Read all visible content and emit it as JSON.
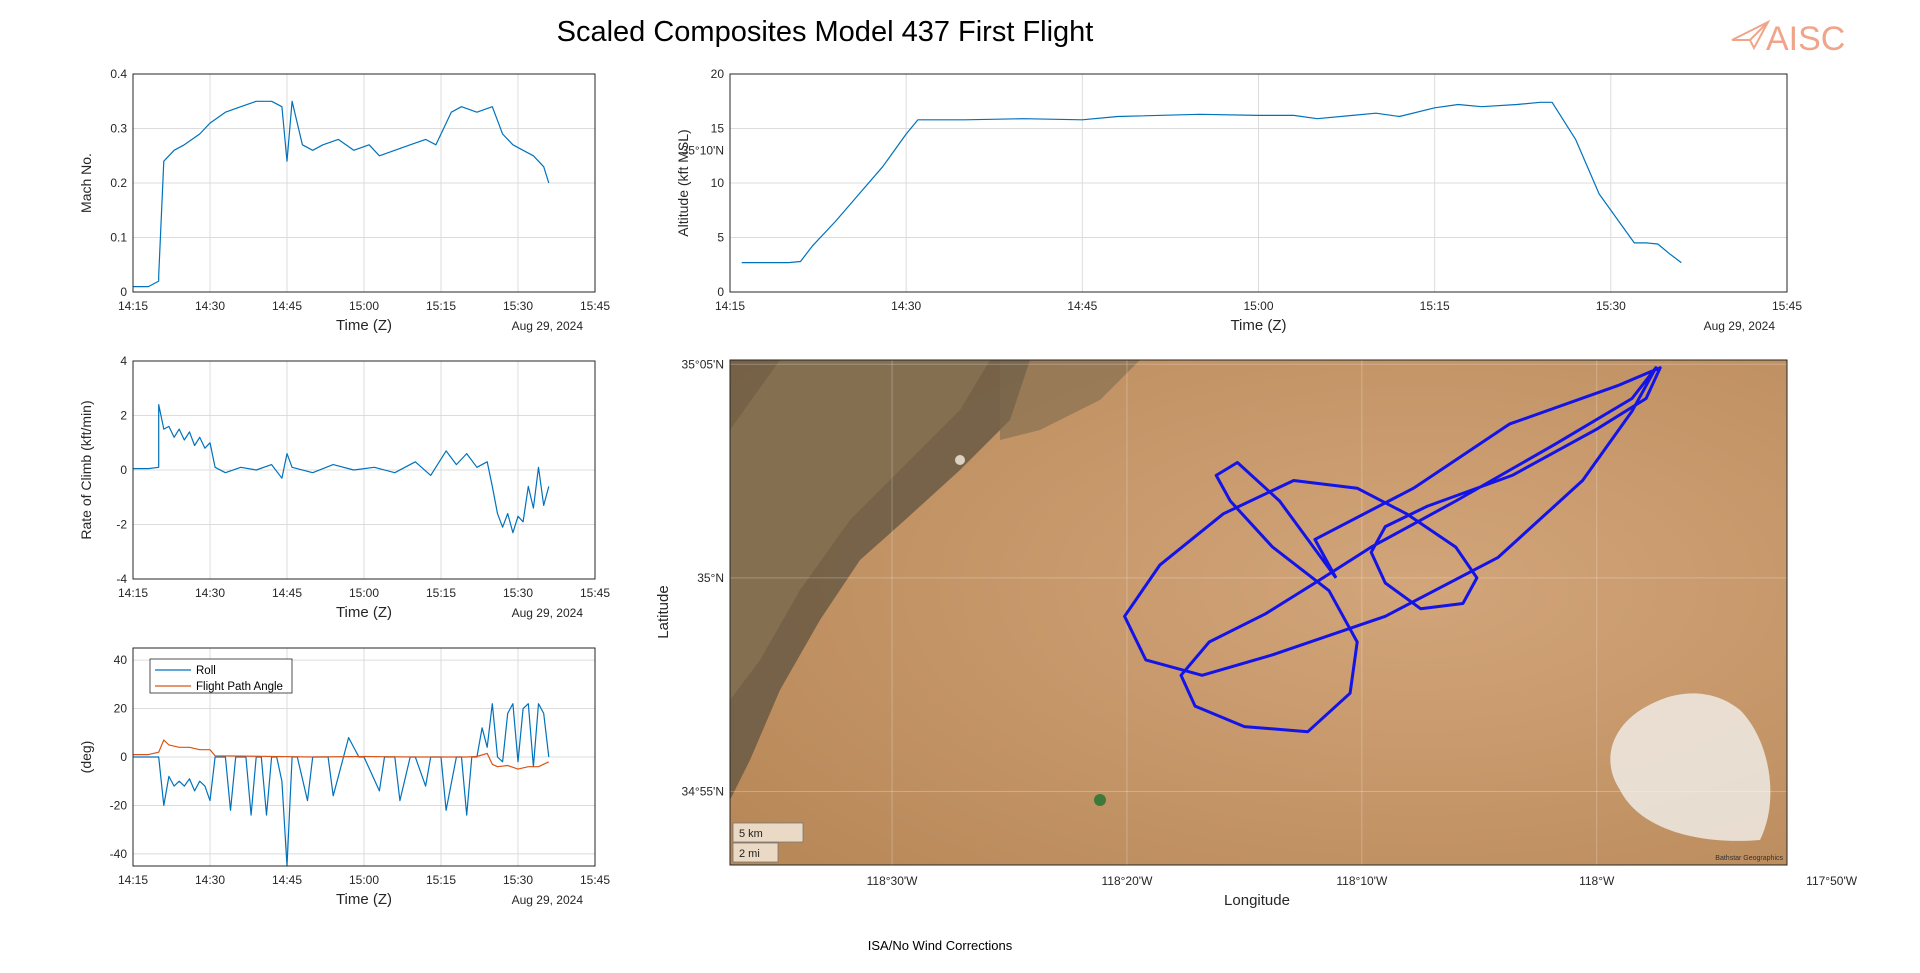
{
  "title": "Scaled Composites Model 437 First Flight",
  "logo_text": "AISC",
  "footer": "ISA/No Wind Corrections",
  "colors": {
    "series_blue": "#0072BD",
    "series_orange": "#D95319",
    "track_blue": "#1414e6",
    "logo": "#f0a58a",
    "grid": "#dcdcdc"
  },
  "chart_data": [
    {
      "id": "mach",
      "type": "line",
      "xlabel": "Time (Z)",
      "ylabel": "Mach No.",
      "date_label": "Aug 29, 2024",
      "x_ticks": [
        "14:15",
        "14:30",
        "14:45",
        "15:00",
        "15:15",
        "15:30",
        "15:45"
      ],
      "y_ticks": [
        "0",
        "0.1",
        "0.2",
        "0.3",
        "0.4"
      ],
      "xlim": [
        "14:15",
        "15:45"
      ],
      "ylim": [
        0,
        0.4
      ],
      "grid": true,
      "series": [
        {
          "color": "series_blue",
          "x": [
            "14:15",
            "14:18",
            "14:20",
            "14:20",
            "14:21",
            "14:23",
            "14:25",
            "14:28",
            "14:30",
            "14:33",
            "14:36",
            "14:39",
            "14:42",
            "14:44",
            "14:45",
            "14:46",
            "14:48",
            "14:50",
            "14:52",
            "14:55",
            "14:58",
            "15:01",
            "15:03",
            "15:06",
            "15:09",
            "15:12",
            "15:14",
            "15:17",
            "15:19",
            "15:22",
            "15:25",
            "15:27",
            "15:29",
            "15:31",
            "15:33",
            "15:35",
            "15:36"
          ],
          "y": [
            0.01,
            0.01,
            0.02,
            0.03,
            0.24,
            0.26,
            0.27,
            0.29,
            0.31,
            0.33,
            0.34,
            0.35,
            0.35,
            0.34,
            0.24,
            0.35,
            0.27,
            0.26,
            0.27,
            0.28,
            0.26,
            0.27,
            0.25,
            0.26,
            0.27,
            0.28,
            0.27,
            0.33,
            0.34,
            0.33,
            0.34,
            0.29,
            0.27,
            0.26,
            0.25,
            0.23,
            0.2
          ]
        }
      ]
    },
    {
      "id": "altitude",
      "type": "line",
      "xlabel": "Time (Z)",
      "ylabel": "Altitude (kft MSL)",
      "date_label": "Aug 29, 2024",
      "x_ticks": [
        "14:15",
        "14:30",
        "14:45",
        "15:00",
        "15:15",
        "15:30",
        "15:45"
      ],
      "y_ticks": [
        "0",
        "5",
        "10",
        "15",
        "20"
      ],
      "xlim": [
        "14:15",
        "15:45"
      ],
      "ylim": [
        0,
        20
      ],
      "grid": true,
      "series": [
        {
          "color": "series_blue",
          "x": [
            "14:16",
            "14:18",
            "14:20",
            "14:21",
            "14:22",
            "14:24",
            "14:26",
            "14:28",
            "14:30",
            "14:31",
            "14:35",
            "14:40",
            "14:45",
            "14:48",
            "14:55",
            "15:00",
            "15:03",
            "15:05",
            "15:08",
            "15:10",
            "15:12",
            "15:15",
            "15:17",
            "15:19",
            "15:22",
            "15:24",
            "15:25",
            "15:27",
            "15:29",
            "15:31",
            "15:32",
            "15:33",
            "15:34",
            "15:35",
            "15:36"
          ],
          "y": [
            2.7,
            2.7,
            2.7,
            2.8,
            4.2,
            6.5,
            9,
            11.5,
            14.5,
            15.8,
            15.8,
            15.9,
            15.8,
            16.1,
            16.3,
            16.2,
            16.2,
            15.9,
            16.2,
            16.4,
            16.1,
            16.9,
            17.2,
            17,
            17.2,
            17.4,
            17.4,
            14,
            9,
            6,
            4.5,
            4.5,
            4.4,
            3.5,
            2.7
          ]
        }
      ]
    },
    {
      "id": "climb",
      "type": "line",
      "xlabel": "Time (Z)",
      "ylabel": "Rate of Climb (kft/min)",
      "date_label": "Aug 29, 2024",
      "x_ticks": [
        "14:15",
        "14:30",
        "14:45",
        "15:00",
        "15:15",
        "15:30",
        "15:45"
      ],
      "y_ticks": [
        "-4",
        "-2",
        "0",
        "2",
        "4"
      ],
      "xlim": [
        "14:15",
        "15:45"
      ],
      "ylim": [
        -4,
        4
      ],
      "grid": true,
      "series": [
        {
          "color": "series_blue",
          "x": [
            "14:15",
            "14:18",
            "14:20",
            "14:20",
            "14:21",
            "14:22",
            "14:23",
            "14:24",
            "14:25",
            "14:26",
            "14:27",
            "14:28",
            "14:29",
            "14:30",
            "14:31",
            "14:33",
            "14:36",
            "14:39",
            "14:42",
            "14:44",
            "14:45",
            "14:46",
            "14:50",
            "14:54",
            "14:58",
            "15:02",
            "15:06",
            "15:10",
            "15:13",
            "15:16",
            "15:18",
            "15:20",
            "15:22",
            "15:24",
            "15:25",
            "15:26",
            "15:27",
            "15:28",
            "15:29",
            "15:30",
            "15:31",
            "15:32",
            "15:33",
            "15:34",
            "15:35",
            "15:36"
          ],
          "y": [
            0.05,
            0.05,
            0.1,
            2.4,
            1.5,
            1.6,
            1.2,
            1.5,
            1.1,
            1.4,
            0.9,
            1.2,
            0.8,
            1,
            0.1,
            -0.1,
            0.1,
            0,
            0.2,
            -0.3,
            0.6,
            0.1,
            -0.1,
            0.2,
            0,
            0.1,
            -0.1,
            0.3,
            -0.2,
            0.7,
            0.2,
            0.6,
            0.1,
            0.3,
            -0.6,
            -1.6,
            -2.1,
            -1.6,
            -2.3,
            -1.7,
            -1.9,
            -0.6,
            -1.4,
            0.1,
            -1.3,
            -0.6
          ]
        }
      ]
    },
    {
      "id": "attitude",
      "type": "line",
      "xlabel": "Time (Z)",
      "ylabel": "(deg)",
      "date_label": "Aug 29, 2024",
      "x_ticks": [
        "14:15",
        "14:30",
        "14:45",
        "15:00",
        "15:15",
        "15:30",
        "15:45"
      ],
      "y_ticks": [
        "-40",
        "-20",
        "0",
        "20",
        "40"
      ],
      "xlim": [
        "14:15",
        "15:45"
      ],
      "ylim": [
        -45,
        45
      ],
      "grid": true,
      "legend": "top-left",
      "series": [
        {
          "name": "Roll",
          "color": "series_blue",
          "x": [
            "14:15",
            "14:18",
            "14:20",
            "14:21",
            "14:22",
            "14:23",
            "14:24",
            "14:25",
            "14:26",
            "14:27",
            "14:28",
            "14:29",
            "14:30",
            "14:31",
            "14:33",
            "14:34",
            "14:35",
            "14:37",
            "14:38",
            "14:39",
            "14:40",
            "14:41",
            "14:42",
            "14:43",
            "14:44",
            "14:45",
            "14:46",
            "14:47",
            "14:49",
            "14:50",
            "14:53",
            "14:54",
            "14:56",
            "14:57",
            "14:59",
            "15:00",
            "15:03",
            "15:04",
            "15:06",
            "15:07",
            "15:09",
            "15:10",
            "15:12",
            "15:13",
            "15:15",
            "15:16",
            "15:18",
            "15:19",
            "15:20",
            "15:21",
            "15:22",
            "15:23",
            "15:24",
            "15:25",
            "15:26",
            "15:27",
            "15:28",
            "15:29",
            "15:30",
            "15:31",
            "15:32",
            "15:33",
            "15:34",
            "15:35",
            "15:36"
          ],
          "y": [
            0,
            0,
            0,
            -20,
            -8,
            -12,
            -10,
            -12,
            -9,
            -14,
            -10,
            -12,
            -18,
            0,
            0,
            -22,
            0,
            0,
            -24,
            0,
            0,
            -24,
            0,
            0,
            -10,
            -45,
            0,
            0,
            -18,
            0,
            0,
            -16,
            0,
            8,
            0,
            0,
            -14,
            0,
            0,
            -18,
            0,
            0,
            -12,
            0,
            0,
            -22,
            0,
            0,
            -24,
            0,
            0,
            12,
            4,
            22,
            0,
            -2,
            18,
            22,
            -2,
            20,
            22,
            -4,
            22,
            18,
            0
          ]
        },
        {
          "name": "Flight Path Angle",
          "color": "series_orange",
          "x": [
            "14:15",
            "14:18",
            "14:20",
            "14:21",
            "14:22",
            "14:24",
            "14:26",
            "14:28",
            "14:30",
            "14:31",
            "14:40",
            "14:50",
            "15:00",
            "15:10",
            "15:15",
            "15:20",
            "15:22",
            "15:24",
            "15:25",
            "15:26",
            "15:28",
            "15:30",
            "15:32",
            "15:34",
            "15:36"
          ],
          "y": [
            1,
            1,
            2,
            7,
            5,
            4,
            4,
            3,
            3,
            0.5,
            0.3,
            0,
            0.2,
            0,
            0,
            0,
            0.2,
            1.5,
            -3,
            -4,
            -3.5,
            -5,
            -4,
            -4,
            -2
          ]
        }
      ]
    },
    {
      "id": "track",
      "type": "map-track",
      "xlabel": "Longitude",
      "ylabel": "Latitude",
      "x_ticks": [
        "118°30'W",
        "118°20'W",
        "118°10'W",
        "118°W",
        "117°50'W"
      ],
      "y_ticks": [
        "34°55'N",
        "35°N",
        "35°05'N",
        "35°10'N"
      ],
      "xlim": [
        -118.615,
        -117.865
      ],
      "ylim": [
        34.888,
        35.085
      ],
      "scale_bar": [
        "5 km",
        "2 mi"
      ],
      "attribution": "Bathstar Geographics",
      "series": [
        {
          "color": "track_blue",
          "lon": [
            -118.185,
            -118.2,
            -118.13,
            -118.062,
            -117.985,
            -117.955,
            -117.965,
            -118.0,
            -118.06,
            -118.12,
            -118.15,
            -118.16,
            -118.15,
            -118.125,
            -118.095,
            -118.085,
            -118.1,
            -118.135,
            -118.17,
            -118.215,
            -118.265,
            -118.31,
            -118.335,
            -118.32,
            -118.28,
            -118.23,
            -118.15,
            -118.07,
            -118.01,
            -117.975,
            -117.958,
            -117.975,
            -118.03,
            -118.1,
            -118.16,
            -118.2,
            -118.235,
            -118.275,
            -118.295,
            -118.285,
            -118.25,
            -118.205,
            -118.175,
            -118.17,
            -118.19,
            -118.23,
            -118.26,
            -118.27,
            -118.255,
            -118.225,
            -118.185
          ],
          "lat": [
            35.0,
            35.015,
            35.035,
            35.06,
            35.075,
            35.082,
            35.07,
            35.058,
            35.04,
            35.028,
            35.02,
            35.01,
            34.998,
            34.988,
            34.99,
            35.0,
            35.012,
            35.025,
            35.035,
            35.038,
            35.025,
            35.005,
            34.985,
            34.968,
            34.962,
            34.97,
            34.985,
            35.008,
            35.038,
            35.065,
            35.082,
            35.07,
            35.052,
            35.03,
            35.012,
            34.998,
            34.986,
            34.975,
            34.962,
            34.95,
            34.942,
            34.94,
            34.955,
            34.975,
            34.995,
            35.012,
            35.03,
            35.04,
            35.045,
            35.03,
            35.0
          ]
        }
      ]
    }
  ]
}
